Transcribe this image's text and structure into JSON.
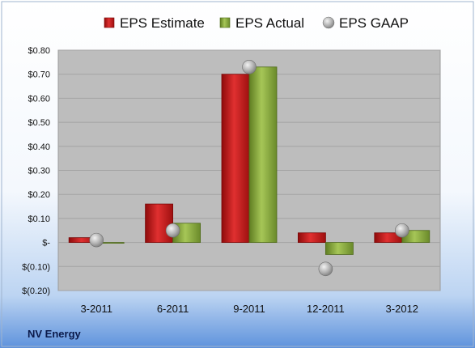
{
  "chart_data": {
    "type": "bar",
    "categories": [
      "3-2011",
      "6-2011",
      "9-2011",
      "12-2011",
      "3-2012"
    ],
    "series": [
      {
        "name": "EPS Estimate",
        "kind": "bar",
        "color": "#cc1f1f",
        "values": [
          0.02,
          0.16,
          0.7,
          0.04,
          0.04
        ]
      },
      {
        "name": "EPS Actual",
        "kind": "bar",
        "color": "#8fb040",
        "values": [
          0.0,
          0.08,
          0.73,
          -0.05,
          0.05
        ]
      },
      {
        "name": "EPS GAAP",
        "kind": "marker",
        "color": "#a8a8a8",
        "values": [
          0.01,
          0.05,
          0.73,
          -0.11,
          0.05
        ]
      }
    ],
    "ylim": [
      -0.2,
      0.8
    ],
    "yticks": [
      {
        "value": 0.8,
        "label": "$0.80"
      },
      {
        "value": 0.7,
        "label": "$0.70"
      },
      {
        "value": 0.6,
        "label": "$0.60"
      },
      {
        "value": 0.5,
        "label": "$0.50"
      },
      {
        "value": 0.4,
        "label": "$0.40"
      },
      {
        "value": 0.3,
        "label": "$0.30"
      },
      {
        "value": 0.2,
        "label": "$0.20"
      },
      {
        "value": 0.1,
        "label": "$0.10"
      },
      {
        "value": 0.0,
        "label": "$-"
      },
      {
        "value": -0.1,
        "label": "$(0.10)"
      },
      {
        "value": -0.2,
        "label": "$(0.20)"
      }
    ],
    "grid": true,
    "legend_position": "top",
    "footer_label": "NV Energy"
  }
}
